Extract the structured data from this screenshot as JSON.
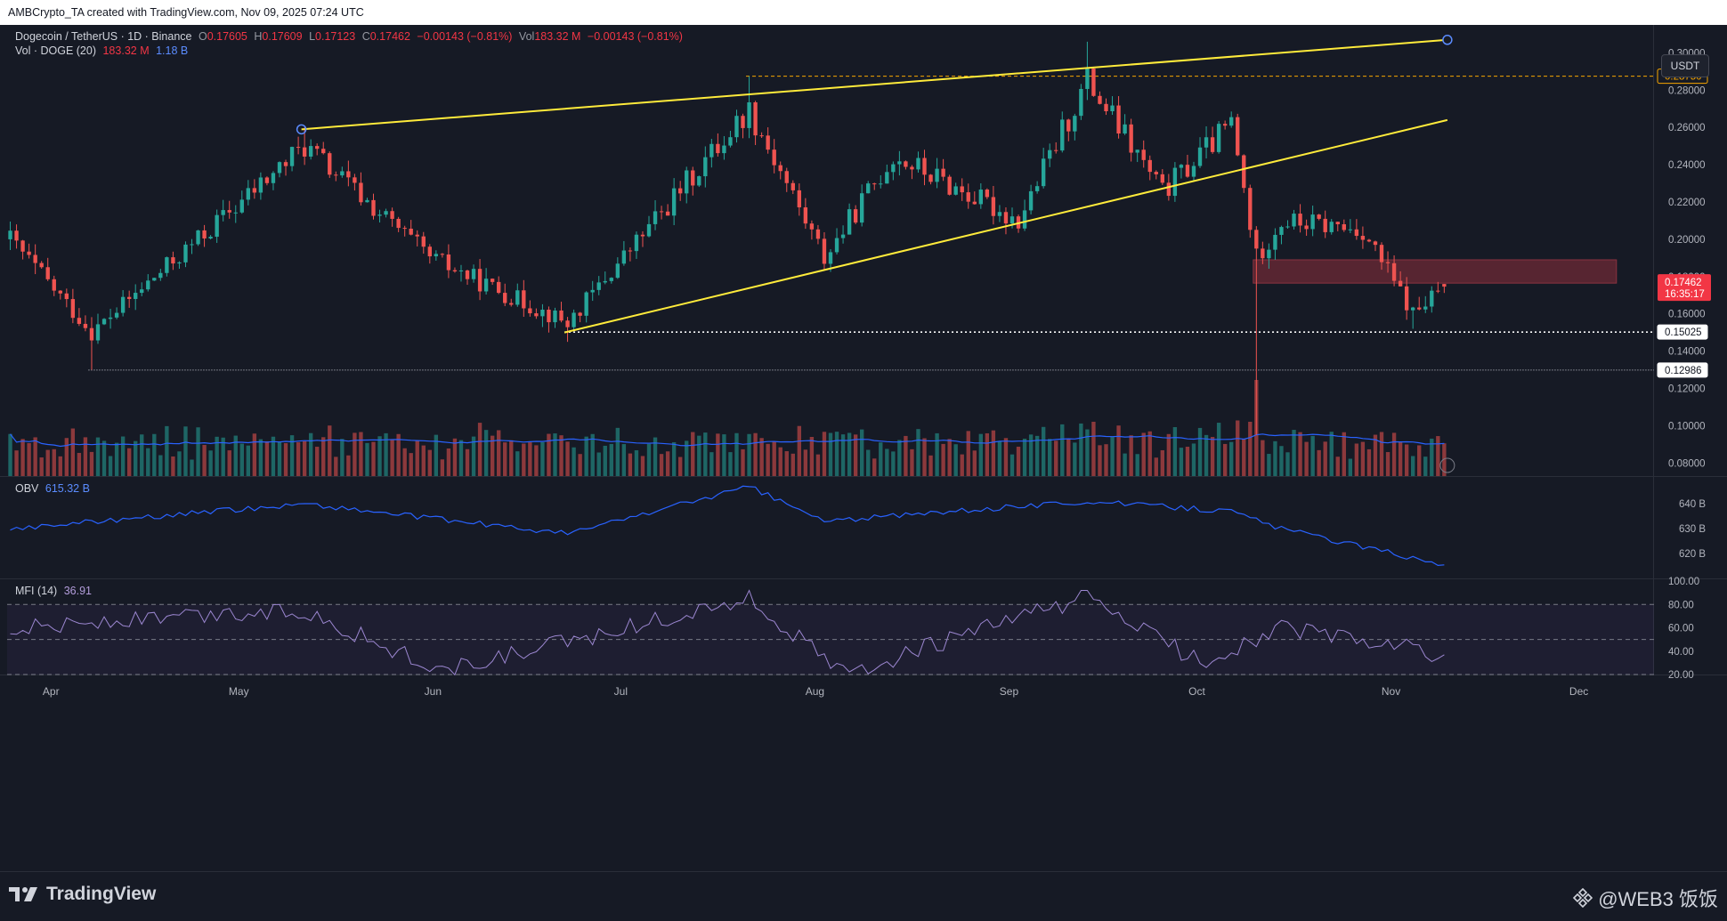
{
  "header": {
    "caption": "AMBCrypto_TA created with TradingView.com, Nov 09, 2025 07:24 UTC"
  },
  "legend": {
    "symbol": "Dogecoin / TetherUS · 1D · Binance",
    "o_label": "O",
    "o": "0.17605",
    "h_label": "H",
    "h": "0.17609",
    "l_label": "L",
    "l": "0.17123",
    "c_label": "C",
    "c": "0.17462",
    "change": "−0.00143 (−0.81%)",
    "vol_label": "Vol",
    "vol": "183.32 M",
    "vol_change": "−0.00143 (−0.81%)",
    "vol_ind": "Vol · DOGE (20)",
    "vol_value": "183.32 M",
    "vol_ma": "1.18 B"
  },
  "obv_legend": {
    "name": "OBV",
    "value": "615.32 B"
  },
  "mfi_legend": {
    "name": "MFI (14)",
    "value": "36.91"
  },
  "currency_button": "USDT",
  "price_axis": {
    "ticks": [
      "0.30000",
      "0.28000",
      "0.26000",
      "0.24000",
      "0.22000",
      "0.20000",
      "0.18000",
      "0.16000",
      "0.14000",
      "0.12000",
      "0.10000",
      "0.08000"
    ],
    "last_price": "0.17462",
    "countdown": "16:35:17",
    "markers": [
      {
        "label": "0.28750",
        "color": "#f7a600"
      },
      {
        "label": "0.15025",
        "color": "#ffffff"
      },
      {
        "label": "0.12986",
        "color": "#ffffff"
      }
    ]
  },
  "obv_axis": {
    "ticks": [
      "640 B",
      "630 B",
      "620 B"
    ]
  },
  "mfi_axis": {
    "ticks": [
      "100.00",
      "80.00",
      "60.00",
      "40.00",
      "20.00"
    ]
  },
  "time_axis": {
    "labels": [
      "Apr",
      "May",
      "Jun",
      "Jul",
      "Aug",
      "Sep",
      "Oct",
      "Nov",
      "Dec"
    ]
  },
  "footer": {
    "brand": "TradingView",
    "watermark": "@WEB3 饭饭"
  },
  "colors": {
    "up": "#26a69a",
    "down": "#ef5350",
    "trendline": "#ffeb3b",
    "obv": "#2962ff",
    "mfi": "#7e57c2",
    "zone": "#6e2a36"
  },
  "chart_data": {
    "type": "candlestick",
    "symbol": "DOGEUSDT",
    "interval": "1D",
    "x_range": [
      "2025-03-25",
      "2025-12-13"
    ],
    "y_range": [
      0.073,
      0.315
    ],
    "key_points": [
      {
        "date": "2025-03-25",
        "close": 0.2
      },
      {
        "date": "2025-04-07",
        "low": 0.13,
        "close": 0.15
      },
      {
        "date": "2025-05-11",
        "high": 0.26,
        "close": 0.25
      },
      {
        "date": "2025-05-31",
        "close": 0.19
      },
      {
        "date": "2025-06-22",
        "low": 0.145,
        "close": 0.155
      },
      {
        "date": "2025-07-21",
        "high": 0.2875,
        "close": 0.27
      },
      {
        "date": "2025-08-02",
        "close": 0.19
      },
      {
        "date": "2025-08-13",
        "close": 0.245
      },
      {
        "date": "2025-09-02",
        "close": 0.21
      },
      {
        "date": "2025-09-13",
        "high": 0.306,
        "close": 0.285
      },
      {
        "date": "2025-09-25",
        "close": 0.225
      },
      {
        "date": "2025-10-06",
        "close": 0.262
      },
      {
        "date": "2025-10-10",
        "low": 0.095,
        "close": 0.19
      },
      {
        "date": "2025-10-14",
        "close": 0.21
      },
      {
        "date": "2025-10-27",
        "close": 0.205
      },
      {
        "date": "2025-11-04",
        "low": 0.152,
        "close": 0.16
      },
      {
        "date": "2025-11-09",
        "open": 0.17605,
        "high": 0.17609,
        "low": 0.17123,
        "close": 0.17462
      }
    ],
    "price_levels": [
      0.2875,
      0.15025,
      0.12986
    ],
    "zone": {
      "from": "2025-10-10",
      "to": "2025-12-07",
      "low": 0.1765,
      "high": 0.189
    },
    "trendlines": [
      {
        "from": [
          "2025-05-11",
          0.259
        ],
        "to": [
          "2025-11-10",
          0.307
        ]
      },
      {
        "from": [
          "2025-06-22",
          0.15
        ],
        "to": [
          "2025-11-10",
          0.264
        ]
      }
    ],
    "obv": {
      "ylim": [
        612,
        648
      ],
      "key_points": [
        {
          "date": "2025-03-25",
          "value": 630
        },
        {
          "date": "2025-05-11",
          "value": 640
        },
        {
          "date": "2025-06-22",
          "value": 628
        },
        {
          "date": "2025-07-21",
          "value": 647
        },
        {
          "date": "2025-08-02",
          "value": 633
        },
        {
          "date": "2025-09-13",
          "value": 641
        },
        {
          "date": "2025-10-06",
          "value": 637
        },
        {
          "date": "2025-10-14",
          "value": 630
        },
        {
          "date": "2025-11-09",
          "value": 615.32
        }
      ]
    },
    "mfi": {
      "ylim": [
        20,
        100
      ],
      "bands": [
        80,
        50,
        20
      ],
      "key_points": [
        {
          "date": "2025-03-25",
          "value": 60
        },
        {
          "date": "2025-05-11",
          "value": 75
        },
        {
          "date": "2025-06-02",
          "value": 22
        },
        {
          "date": "2025-07-21",
          "value": 85
        },
        {
          "date": "2025-08-05",
          "value": 20
        },
        {
          "date": "2025-09-13",
          "value": 87
        },
        {
          "date": "2025-10-01",
          "value": 30
        },
        {
          "date": "2025-10-14",
          "value": 60
        },
        {
          "date": "2025-11-09",
          "value": 36.91
        }
      ]
    }
  }
}
